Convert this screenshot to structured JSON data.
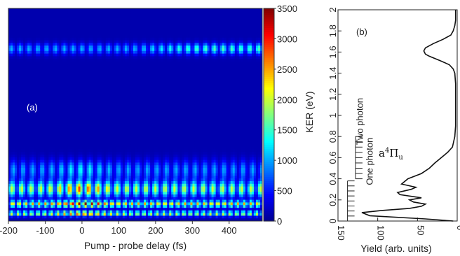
{
  "chart_data": [
    {
      "type": "heatmap",
      "panel_label": "(a)",
      "xlabel": "Pump - probe delay (fs)",
      "xlim": [
        -200,
        490
      ],
      "ylim": [
        0,
        2.0
      ],
      "x_ticks": [
        "-200",
        "-100",
        "0",
        "100",
        "200",
        "300",
        "400"
      ],
      "x_tick_values": [
        -200,
        -100,
        0,
        100,
        200,
        300,
        400
      ],
      "colorbar": {
        "range": [
          0,
          3500
        ],
        "ticks": [
          "0",
          "500",
          "1000",
          "1500",
          "2000",
          "2500",
          "3000",
          "3500"
        ],
        "tick_values": [
          0,
          500,
          1000,
          1500,
          2000,
          2500,
          3000,
          3500
        ],
        "colormap": [
          "#00008f",
          "#0000ff",
          "#0080ff",
          "#00ffff",
          "#80ff80",
          "#ffff00",
          "#ff8000",
          "#ff0000",
          "#800000"
        ]
      },
      "bands": [
        {
          "center_kev": 1.62,
          "width": 0.05,
          "peak": 1500,
          "oscillation_period_fs": 24
        },
        {
          "center_kev": 0.48,
          "width": 0.09,
          "peak": 1300,
          "oscillation_period_fs": 26
        },
        {
          "center_kev": 0.3,
          "width": 0.07,
          "peak": 2800,
          "oscillation_period_fs": 26
        },
        {
          "center_kev": 0.16,
          "width": 0.03,
          "peak": 3400,
          "oscillation_period_fs": 18
        },
        {
          "center_kev": 0.07,
          "width": 0.025,
          "peak": 3000,
          "oscillation_period_fs": 18
        }
      ]
    },
    {
      "type": "line",
      "panel_label": "(b)",
      "ylabel": "KER (eV)",
      "xlabel": "Yield (arb. units)",
      "xlim": [
        150,
        0
      ],
      "ylim": [
        0,
        2.0
      ],
      "x_ticks": [
        "150",
        "100",
        "50",
        "0"
      ],
      "x_tick_values": [
        150,
        100,
        50,
        0
      ],
      "y_ticks": [
        "0",
        "0.2",
        "0.4",
        "0.6",
        "0.8",
        "1",
        "1.2",
        "1.4",
        "1.6",
        "1.8",
        "2"
      ],
      "y_tick_values": [
        0,
        0.2,
        0.4,
        0.6,
        0.8,
        1.0,
        1.2,
        1.4,
        1.6,
        1.8,
        2.0
      ],
      "annotations": {
        "state_label": "a",
        "state_sup": "4",
        "state_pi": "Π",
        "state_sub": "u",
        "two_photon": "Two photon",
        "one_photon": "One photon"
      },
      "series": [
        {
          "x": [
            5,
            40,
            110,
            120,
            95,
            60,
            45,
            40,
            55,
            60,
            45,
            72,
            75,
            58,
            52,
            70,
            62,
            45,
            35,
            28,
            20,
            12,
            6,
            3,
            2,
            2,
            2,
            2,
            2,
            3,
            5,
            10,
            22,
            35,
            40,
            42,
            40,
            30,
            18,
            8,
            5,
            3,
            2,
            2
          ],
          "y": [
            0.0,
            0.02,
            0.05,
            0.08,
            0.1,
            0.12,
            0.14,
            0.16,
            0.18,
            0.2,
            0.22,
            0.25,
            0.27,
            0.3,
            0.32,
            0.35,
            0.4,
            0.45,
            0.5,
            0.55,
            0.6,
            0.65,
            0.7,
            0.8,
            0.9,
            1.0,
            1.1,
            1.2,
            1.3,
            1.4,
            1.44,
            1.48,
            1.52,
            1.56,
            1.58,
            1.61,
            1.64,
            1.68,
            1.72,
            1.76,
            1.8,
            1.85,
            1.9,
            2.0
          ]
        }
      ]
    }
  ]
}
